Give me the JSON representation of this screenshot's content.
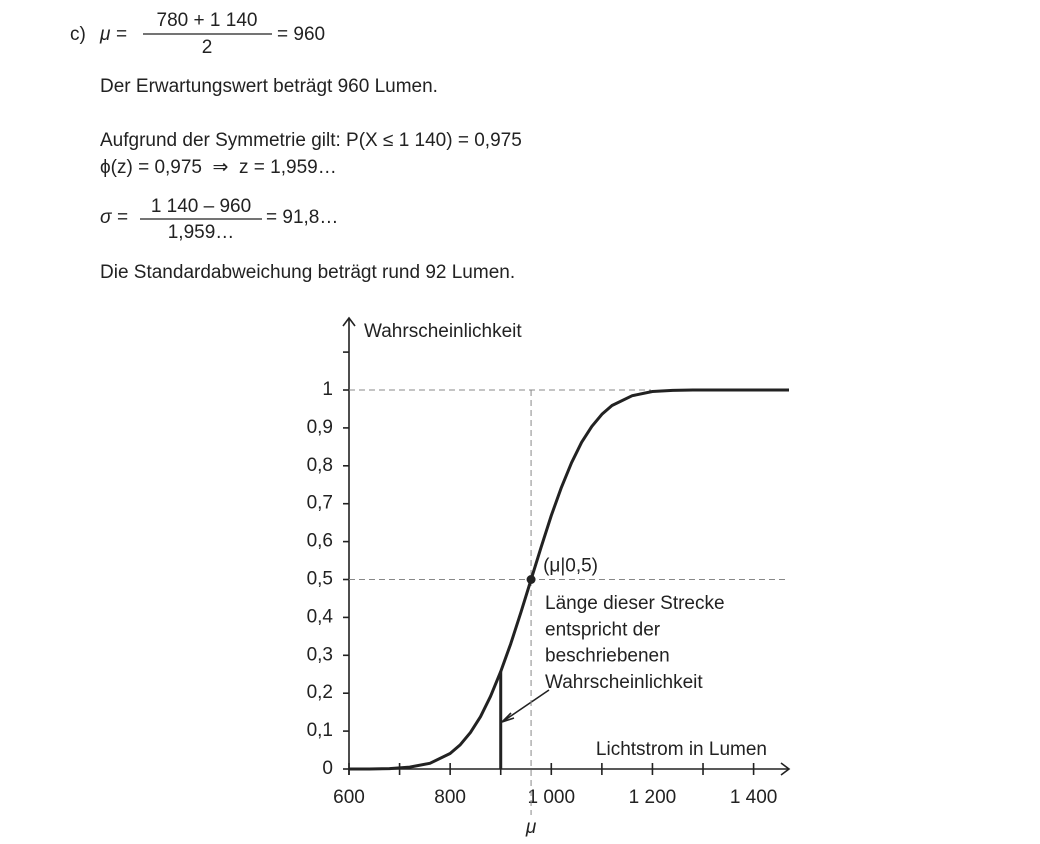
{
  "solution": {
    "label": "c)",
    "mu_equation": {
      "lhs": "μ =",
      "numerator": "780 + 1 140",
      "denominator": "2",
      "rhs": "= 960"
    },
    "expectation_text": "Der Erwartungswert beträgt 960 Lumen.",
    "symmetry_text": "Aufgrund der Symmetrie gilt: P(X ≤ 1 140) = 0,975",
    "phi_text": "ϕ(z) = 0,975  ⇒  z = 1,959…",
    "sigma_equation": {
      "lhs": "σ =",
      "numerator": "1 140 – 960",
      "denominator": "1,959…",
      "rhs": "= 91,8…"
    },
    "sd_text": "Die Standardabweichung beträgt rund 92 Lumen."
  },
  "chart_data": {
    "type": "line",
    "ylabel": "Wahrscheinlichkeit",
    "xlabel": "Lichtstrom in Lumen",
    "xlim": [
      600,
      1470
    ],
    "ylim": [
      0,
      1.19
    ],
    "xticks": [
      600,
      800,
      {
        "value": 1000,
        "label": "1 000"
      },
      {
        "value": 1200,
        "label": "1 200"
      },
      {
        "value": 1400,
        "label": "1 400"
      }
    ],
    "xminorticks": [
      700,
      900,
      1100,
      1300
    ],
    "yticks": [
      0,
      {
        "value": 0.1,
        "label": "0,1"
      },
      {
        "value": 0.2,
        "label": "0,2"
      },
      {
        "value": 0.3,
        "label": "0,3"
      },
      {
        "value": 0.4,
        "label": "0,4"
      },
      {
        "value": 0.5,
        "label": "0,5"
      },
      {
        "value": 0.6,
        "label": "0,6"
      },
      {
        "value": 0.7,
        "label": "0,7"
      },
      {
        "value": 0.8,
        "label": "0,8"
      },
      {
        "value": 0.9,
        "label": "0,9"
      },
      1
    ],
    "yminorticks": [
      1.1
    ],
    "series": [
      {
        "color": "#222222",
        "x": [
          600,
          640,
          680,
          720,
          760,
          800,
          820,
          840,
          860,
          880,
          900,
          920,
          940,
          960,
          980,
          1000,
          1020,
          1040,
          1060,
          1080,
          1100,
          1120,
          1160,
          1200,
          1240,
          1280,
          1320,
          1400,
          1470
        ],
        "values": [
          0,
          0,
          0.001,
          0.005,
          0.015,
          0.041,
          0.064,
          0.096,
          0.138,
          0.192,
          0.257,
          0.331,
          0.414,
          0.5,
          0.586,
          0.669,
          0.743,
          0.808,
          0.862,
          0.904,
          0.936,
          0.959,
          0.985,
          0.996,
          0.999,
          1,
          1,
          1,
          1
        ]
      }
    ],
    "point": {
      "x": 960,
      "y": 0.5,
      "label": "(μ|0,5)"
    },
    "mu_label": "μ",
    "segment": {
      "x": 900,
      "y": 0.257
    },
    "annotation": [
      "Länge dieser Strecke",
      "entspricht der",
      "beschriebenen",
      "Wahrscheinlichkeit"
    ]
  }
}
